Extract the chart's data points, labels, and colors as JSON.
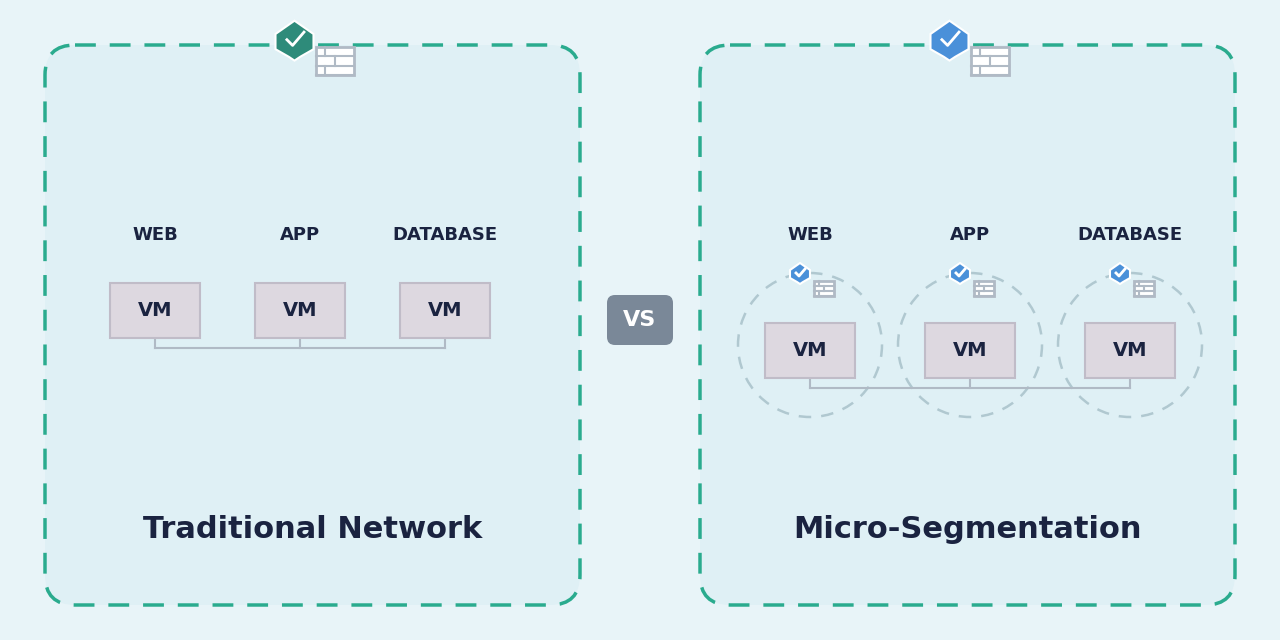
{
  "bg_color": "#e8f4f8",
  "panel_bg": "#dff0f5",
  "box_border_color": "#2aab8e",
  "vm_box_color": "#ddd8e0",
  "vm_text_color": "#1a2340",
  "label_color": "#1a2340",
  "title_left": "Traditional Network",
  "title_right": "Micro-Segmentation",
  "vs_bg": "#7a8898",
  "vs_text": "#ffffff",
  "shield_teal": "#2e8b7a",
  "shield_blue": "#4a90d9",
  "firewall_color": "#b0bac5",
  "circle_border": "#b0c8d0",
  "line_color": "#b0bac5",
  "categories": [
    "WEB",
    "APP",
    "DATABASE"
  ],
  "title_fontsize": 22,
  "label_fontsize": 13,
  "vm_fontsize": 14,
  "vs_fontsize": 16
}
